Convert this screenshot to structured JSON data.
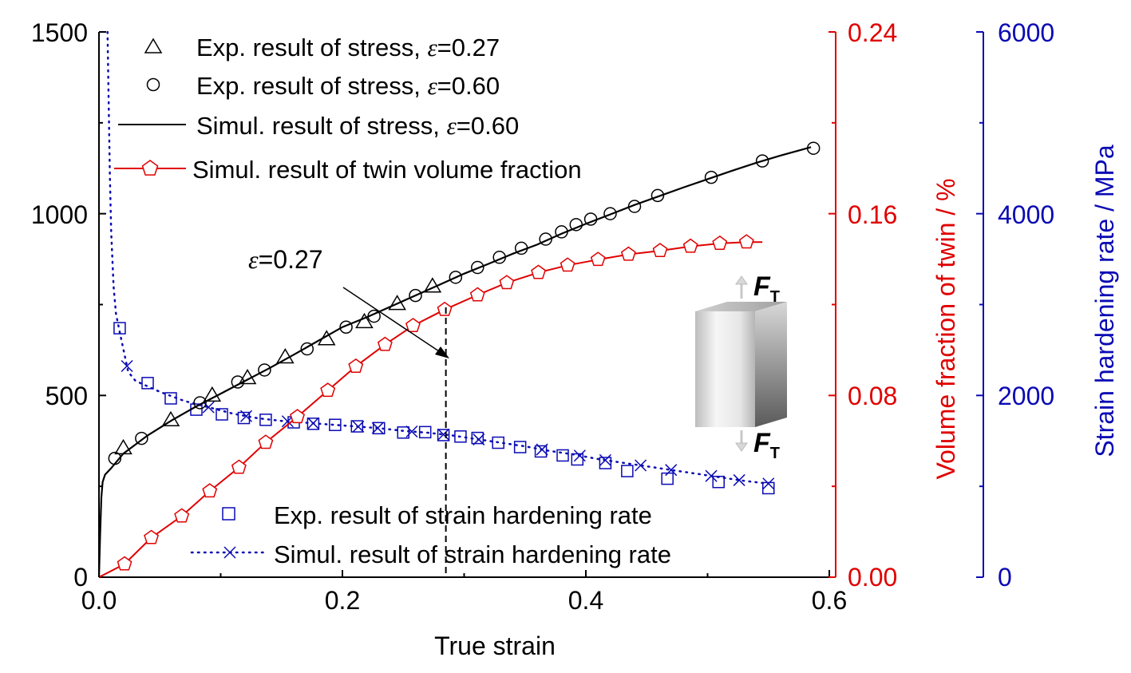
{
  "chart_data": {
    "type": "line",
    "x_axis": {
      "label": "True strain",
      "range": [
        0.0,
        0.6
      ],
      "ticks": [
        "0.0",
        "0.2",
        "0.4",
        "0.6"
      ]
    },
    "y_axis_left": {
      "label": "",
      "range": [
        0,
        1500
      ],
      "ticks": [
        "0",
        "500",
        "1000",
        "1500"
      ]
    },
    "y_axis_right1": {
      "label": "Volume fraction of twin / %",
      "range": [
        0.0,
        0.24
      ],
      "ticks": [
        "0.00",
        "0.08",
        "0.16",
        "0.24"
      ],
      "color": "#e00000"
    },
    "y_axis_right2": {
      "label": "Strain hardening rate / MPa",
      "range": [
        0,
        6000
      ],
      "ticks": [
        "0",
        "2000",
        "4000",
        "6000"
      ],
      "color": "#0a0ab4"
    },
    "legend_top": [
      {
        "marker": "triangle",
        "text": "Exp. result of stress, ",
        "sym": "ε",
        "value": "=0.27"
      },
      {
        "marker": "circle",
        "text": "Exp. result of stress, ",
        "sym": "ε",
        "value": "=0.60"
      },
      {
        "marker": "line",
        "text": "Simul. result of stress, ",
        "sym": "ε",
        "value": "=0.60"
      },
      {
        "marker": "pentagon-line",
        "text": "Simul. result of  twin volume fraction",
        "sym": "",
        "value": ""
      }
    ],
    "legend_bottom": [
      {
        "marker": "square",
        "text": "Exp. result of strain hardening rate"
      },
      {
        "marker": "dotted-x",
        "text": "Simul. result of strain hardening rate"
      }
    ],
    "annotation": {
      "sym": "ε",
      "text": "=0.27",
      "x": 0.285
    },
    "inset": {
      "force_label": "F",
      "force_sub": "T"
    },
    "series": [
      {
        "name": "Exp. result of stress, ε=0.27",
        "axis": "left",
        "marker": "triangle",
        "color": "#000000",
        "points": [
          [
            0.02,
            355
          ],
          [
            0.059,
            432
          ],
          [
            0.093,
            500
          ],
          [
            0.122,
            548
          ],
          [
            0.153,
            605
          ],
          [
            0.187,
            655
          ],
          [
            0.218,
            702
          ],
          [
            0.245,
            752
          ],
          [
            0.274,
            800
          ]
        ]
      },
      {
        "name": "Exp. result of stress, ε=0.60",
        "axis": "left",
        "marker": "circle",
        "color": "#000000",
        "points": [
          [
            0.013,
            327
          ],
          [
            0.035,
            382
          ],
          [
            0.083,
            480
          ],
          [
            0.114,
            537
          ],
          [
            0.136,
            570
          ],
          [
            0.171,
            628
          ],
          [
            0.203,
            688
          ],
          [
            0.226,
            718
          ],
          [
            0.26,
            775
          ],
          [
            0.293,
            825
          ],
          [
            0.311,
            852
          ],
          [
            0.329,
            880
          ],
          [
            0.347,
            905
          ],
          [
            0.367,
            930
          ],
          [
            0.38,
            950
          ],
          [
            0.392,
            970
          ],
          [
            0.404,
            985
          ],
          [
            0.42,
            1000
          ],
          [
            0.44,
            1020
          ],
          [
            0.459,
            1050
          ],
          [
            0.503,
            1100
          ],
          [
            0.545,
            1145
          ],
          [
            0.587,
            1180
          ]
        ]
      },
      {
        "name": "Simul. result of stress, ε=0.60",
        "axis": "left",
        "marker": "line",
        "color": "#000000",
        "points": [
          [
            0.0,
            0
          ],
          [
            0.001,
            120
          ],
          [
            0.002,
            220
          ],
          [
            0.003,
            262
          ],
          [
            0.005,
            282
          ],
          [
            0.01,
            300
          ],
          [
            0.02,
            340
          ],
          [
            0.04,
            390
          ],
          [
            0.06,
            432
          ],
          [
            0.08,
            470
          ],
          [
            0.1,
            505
          ],
          [
            0.12,
            540
          ],
          [
            0.14,
            575
          ],
          [
            0.16,
            612
          ],
          [
            0.18,
            650
          ],
          [
            0.2,
            688
          ],
          [
            0.22,
            715
          ],
          [
            0.24,
            745
          ],
          [
            0.26,
            775
          ],
          [
            0.28,
            805
          ],
          [
            0.3,
            835
          ],
          [
            0.32,
            862
          ],
          [
            0.34,
            890
          ],
          [
            0.36,
            915
          ],
          [
            0.38,
            945
          ],
          [
            0.4,
            972
          ],
          [
            0.42,
            998
          ],
          [
            0.44,
            1024
          ],
          [
            0.46,
            1048
          ],
          [
            0.48,
            1072
          ],
          [
            0.5,
            1095
          ],
          [
            0.52,
            1118
          ],
          [
            0.54,
            1140
          ],
          [
            0.56,
            1160
          ],
          [
            0.585,
            1183
          ]
        ]
      },
      {
        "name": "Simul. result of  twin volume fraction",
        "axis": "right1",
        "marker": "pentagon-line",
        "color": "#e00000",
        "points": [
          [
            0.0,
            0.0
          ],
          [
            0.021,
            0.0058
          ],
          [
            0.043,
            0.0174
          ],
          [
            0.068,
            0.0269
          ],
          [
            0.091,
            0.0379
          ],
          [
            0.115,
            0.0483
          ],
          [
            0.137,
            0.0593
          ],
          [
            0.163,
            0.0706
          ],
          [
            0.188,
            0.0822
          ],
          [
            0.211,
            0.0928
          ],
          [
            0.235,
            0.1024
          ],
          [
            0.258,
            0.1107
          ],
          [
            0.284,
            0.1178
          ],
          [
            0.311,
            0.1242
          ],
          [
            0.335,
            0.1296
          ],
          [
            0.361,
            0.1341
          ],
          [
            0.385,
            0.1373
          ],
          [
            0.41,
            0.1398
          ],
          [
            0.435,
            0.1421
          ],
          [
            0.461,
            0.1437
          ],
          [
            0.486,
            0.1456
          ],
          [
            0.51,
            0.1469
          ],
          [
            0.532,
            0.1475
          ],
          [
            0.545,
            0.1475
          ]
        ]
      },
      {
        "name": "Exp. result of strain hardening rate",
        "axis": "right2",
        "marker": "square",
        "color": "#0a0ab4",
        "points": [
          [
            0.017,
            2740
          ],
          [
            0.04,
            2136
          ],
          [
            0.059,
            1968
          ],
          [
            0.08,
            1844
          ],
          [
            0.101,
            1792
          ],
          [
            0.119,
            1752
          ],
          [
            0.137,
            1732
          ],
          [
            0.16,
            1704
          ],
          [
            0.176,
            1688
          ],
          [
            0.194,
            1676
          ],
          [
            0.212,
            1660
          ],
          [
            0.23,
            1640
          ],
          [
            0.25,
            1592
          ],
          [
            0.268,
            1596
          ],
          [
            0.283,
            1564
          ],
          [
            0.297,
            1548
          ],
          [
            0.311,
            1532
          ],
          [
            0.328,
            1480
          ],
          [
            0.346,
            1432
          ],
          [
            0.363,
            1384
          ],
          [
            0.381,
            1340
          ],
          [
            0.393,
            1296
          ],
          [
            0.416,
            1256
          ],
          [
            0.434,
            1168
          ],
          [
            0.467,
            1084
          ],
          [
            0.509,
            1048
          ],
          [
            0.55,
            980
          ]
        ]
      },
      {
        "name": "Simul. result of strain hardening rate",
        "axis": "right2",
        "marker": "dotted-x",
        "color": "#0a0ab4",
        "points": [
          [
            0.007,
            6000
          ],
          [
            0.008,
            5200
          ],
          [
            0.009,
            4400
          ],
          [
            0.01,
            3800
          ],
          [
            0.012,
            3200
          ],
          [
            0.014,
            2900
          ],
          [
            0.017,
            2700
          ],
          [
            0.021,
            2450
          ],
          [
            0.024,
            2260
          ],
          [
            0.03,
            2160
          ],
          [
            0.05,
            2040
          ],
          [
            0.07,
            1940
          ],
          [
            0.09,
            1870
          ],
          [
            0.11,
            1800
          ],
          [
            0.13,
            1750
          ],
          [
            0.15,
            1720
          ],
          [
            0.17,
            1700
          ],
          [
            0.19,
            1680
          ],
          [
            0.21,
            1660
          ],
          [
            0.23,
            1640
          ],
          [
            0.25,
            1610
          ],
          [
            0.27,
            1590
          ],
          [
            0.29,
            1560
          ],
          [
            0.31,
            1520
          ],
          [
            0.33,
            1480
          ],
          [
            0.35,
            1440
          ],
          [
            0.37,
            1390
          ],
          [
            0.39,
            1350
          ],
          [
            0.41,
            1300
          ],
          [
            0.43,
            1260
          ],
          [
            0.45,
            1220
          ],
          [
            0.47,
            1180
          ],
          [
            0.49,
            1140
          ],
          [
            0.51,
            1100
          ],
          [
            0.53,
            1060
          ],
          [
            0.55,
            1030
          ]
        ],
        "x_markers": [
          0.023,
          0.09,
          0.121,
          0.155,
          0.176,
          0.213,
          0.229,
          0.257,
          0.283,
          0.312,
          0.364,
          0.395,
          0.416,
          0.445,
          0.47,
          0.503,
          0.526,
          0.55
        ]
      }
    ]
  }
}
